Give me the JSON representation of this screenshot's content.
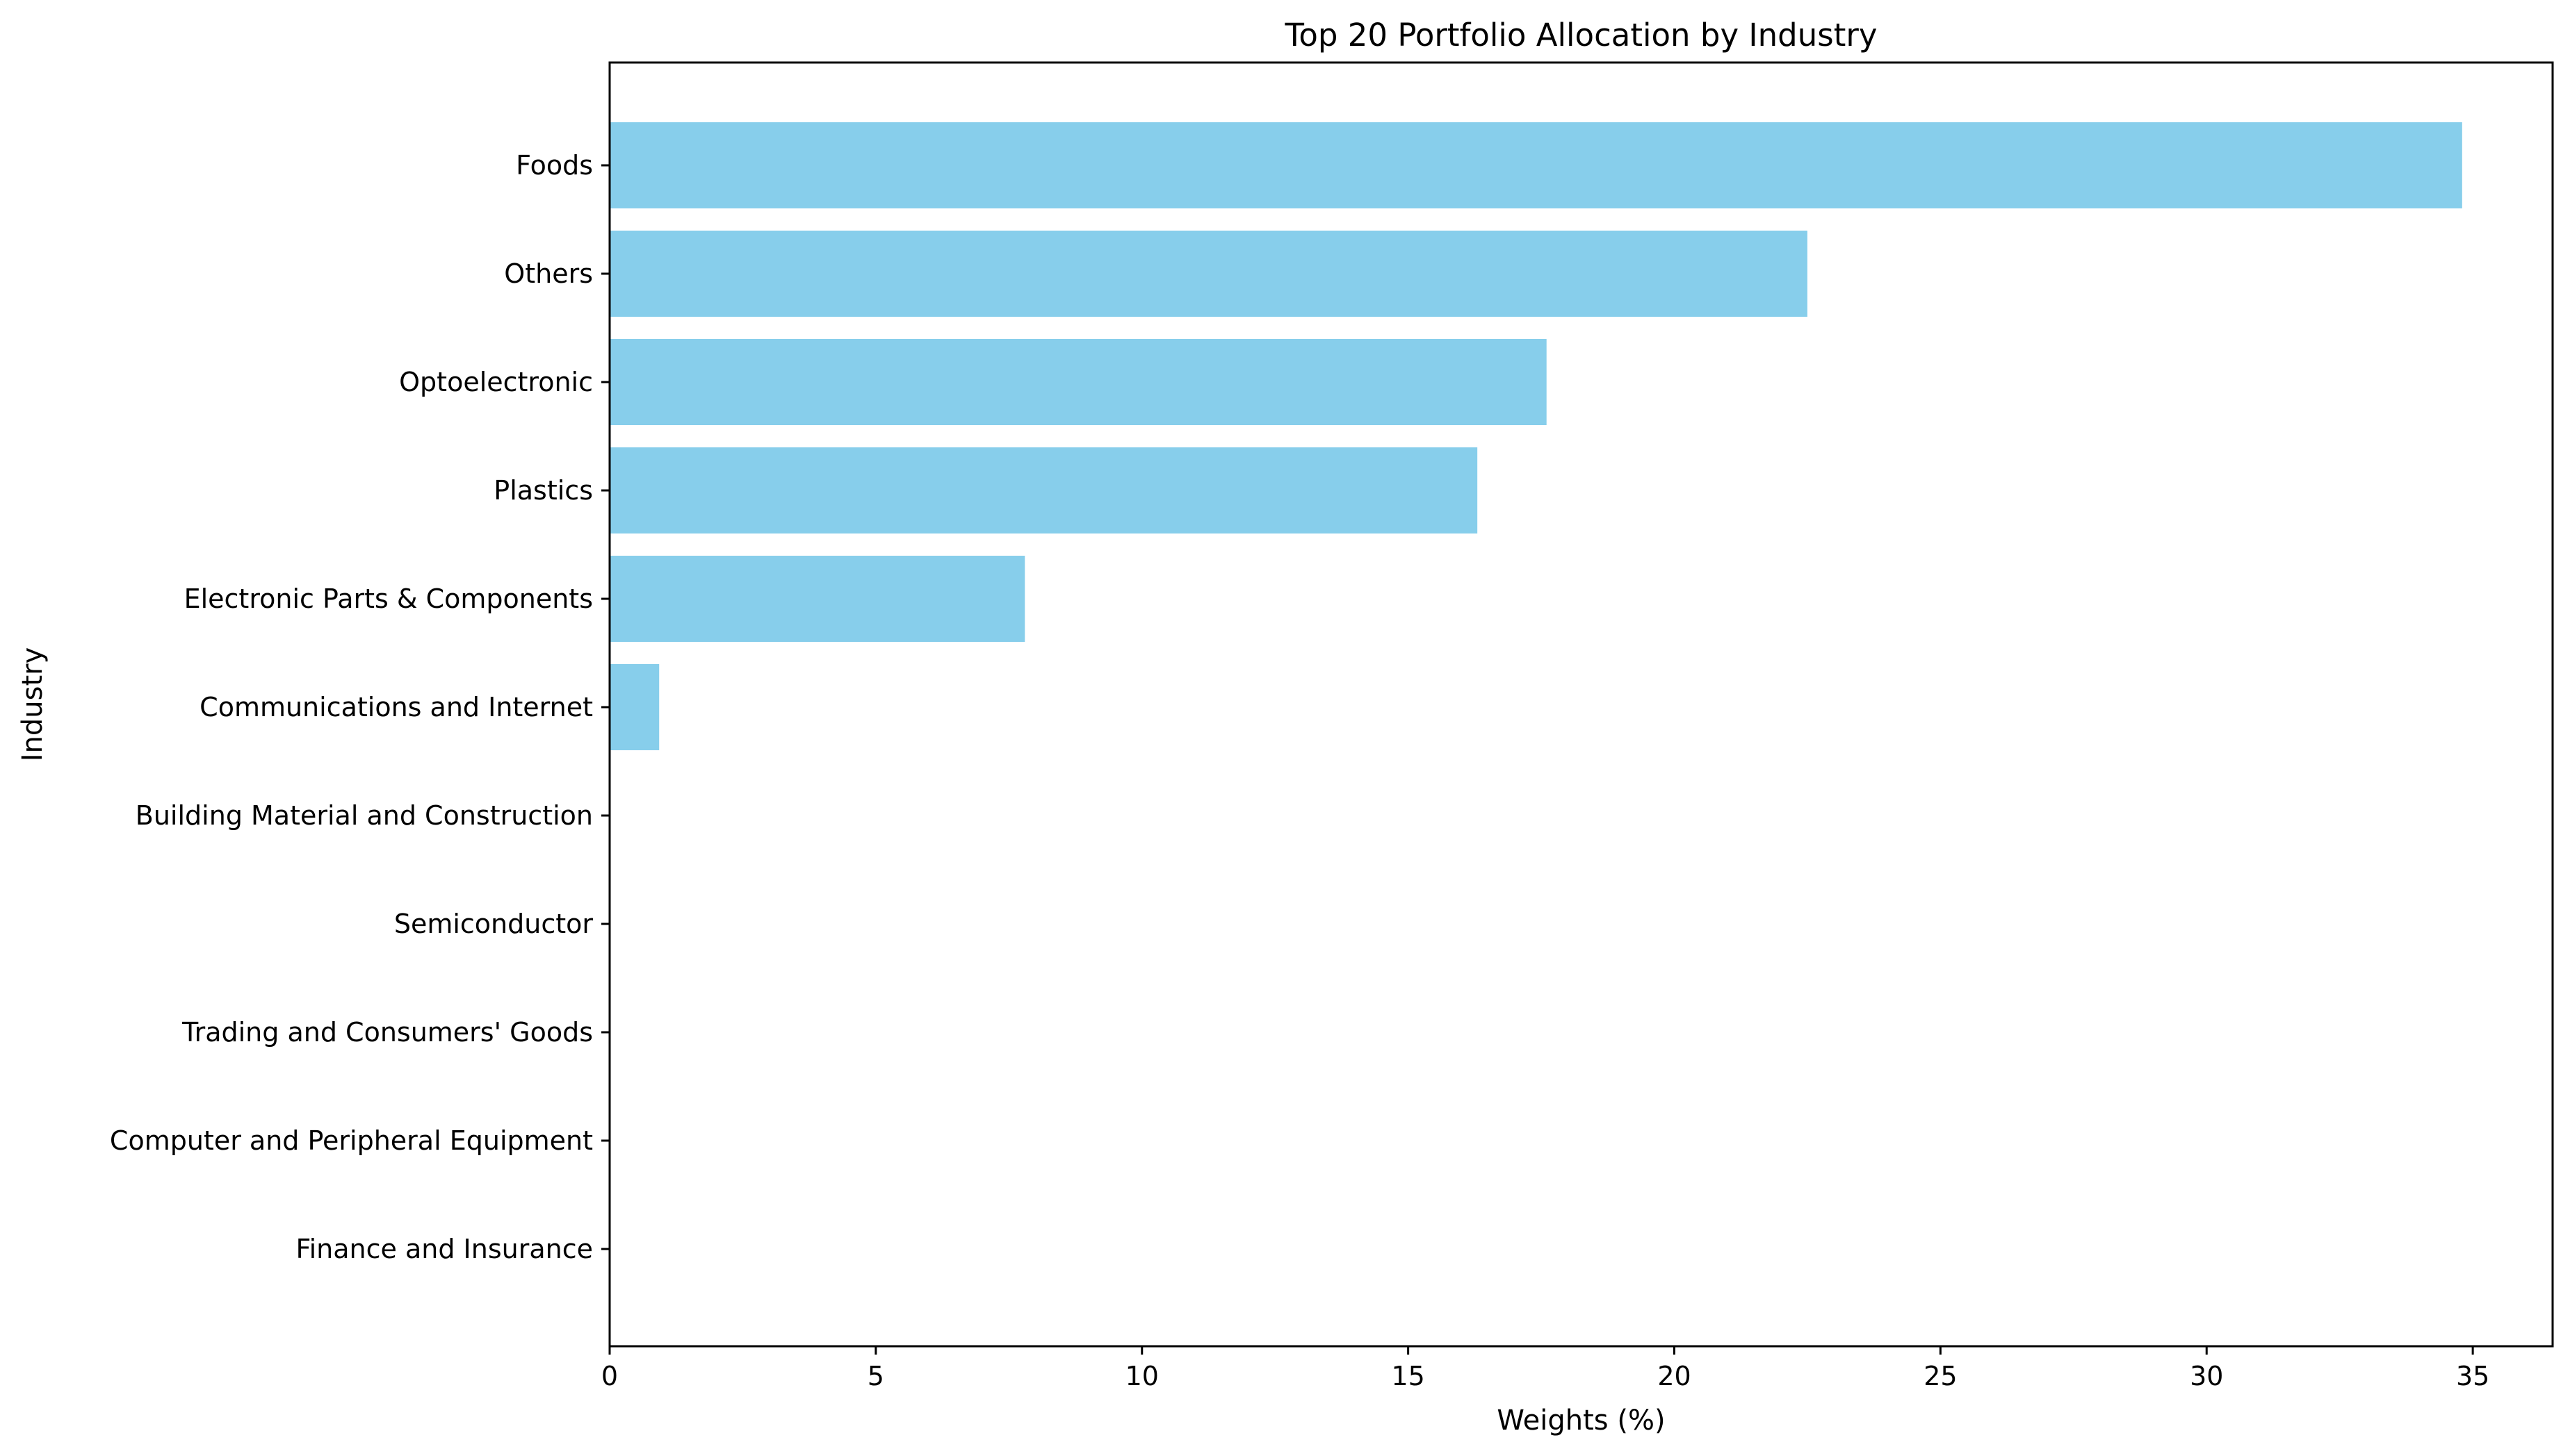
{
  "chart_data": {
    "type": "bar",
    "orientation": "horizontal",
    "title": "Top 20 Portfolio Allocation by Industry",
    "xlabel": "Weights (%)",
    "ylabel": "Industry",
    "xlim": [
      0,
      36.5
    ],
    "xticks": [
      "0",
      "5",
      "10",
      "15",
      "20",
      "25",
      "30",
      "35"
    ],
    "grid": false,
    "bar_color": "#87CEEB",
    "categories": [
      "Foods",
      "Others",
      "Optoelectronic",
      "Plastics",
      "Electronic Parts & Components",
      "Communications and Internet",
      "Building Material and Construction",
      "Semiconductor",
      "Trading and Consumers' Goods",
      "Computer and Peripheral Equipment",
      "Finance and Insurance"
    ],
    "values": [
      34.8,
      22.5,
      17.6,
      16.3,
      7.8,
      0.93,
      0,
      0,
      0,
      0,
      0
    ]
  }
}
